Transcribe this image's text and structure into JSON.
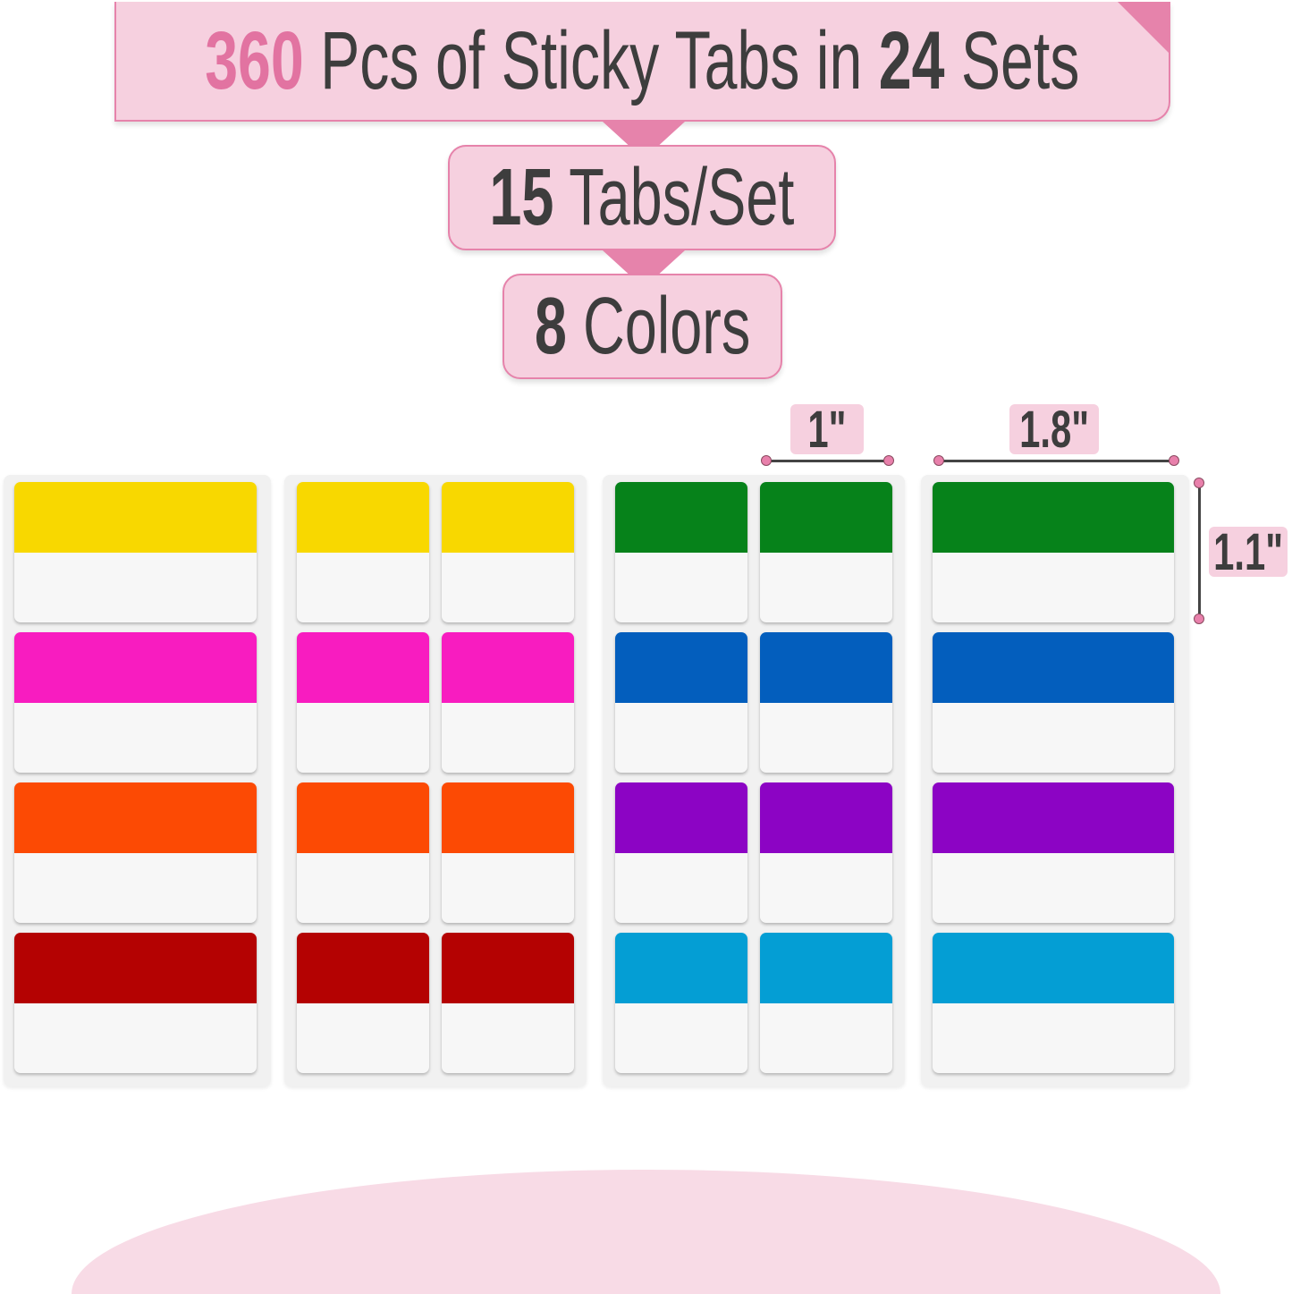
{
  "headline": {
    "count": "360",
    "middle": "Pcs of Sticky Tabs in",
    "sets": "24",
    "end": "Sets"
  },
  "tabs_per_set": {
    "num": "15",
    "label": "Tabs/Set"
  },
  "colors_count": {
    "num": "8",
    "label": "Colors"
  },
  "dimensions": {
    "small_width": "1\"",
    "large_width": "1.8\"",
    "height": "1.1\""
  },
  "accent_color": "#e683ab",
  "sheets": [
    {
      "columns": 1,
      "colors": [
        "#f8d800",
        "#f81cc0",
        "#fc4a04",
        "#b40202"
      ]
    },
    {
      "columns": 2,
      "colors": [
        "#f8d800",
        "#f81cc0",
        "#fc4a04",
        "#b40202"
      ]
    },
    {
      "columns": 2,
      "colors": [
        "#06821a",
        "#035ebd",
        "#8c04c4",
        "#049ed4"
      ]
    },
    {
      "columns": 1,
      "colors": [
        "#06821a",
        "#035ebd",
        "#8c04c4",
        "#049ed4"
      ]
    }
  ]
}
